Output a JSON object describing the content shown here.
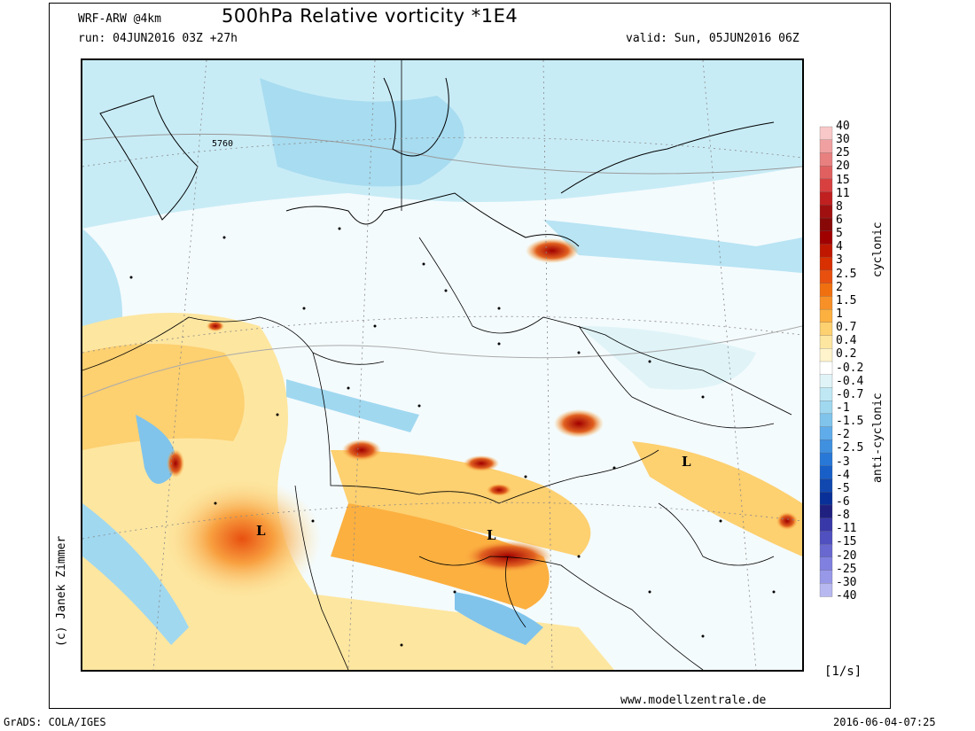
{
  "header": {
    "model": "WRF-ARW @4km",
    "title": "500hPa Relative vorticity *1E4",
    "run": "run: 04JUN2016 03Z +27h",
    "valid": "valid: Sun, 05JUN2016 06Z"
  },
  "footer": {
    "units": "[1/s]",
    "url": "www.modellzentrale.de",
    "grads": "GrADS: COLA/IGES",
    "timestamp": "2016-06-04-07:25",
    "copyright": "(c) Janek Zimmer"
  },
  "colorbar": {
    "cyclonic_label": "cyclonic",
    "anticyclonic_label": "anti-cyclonic",
    "ticks": [
      "40",
      "30",
      "25",
      "20",
      "15",
      "11",
      "8",
      "6",
      "5",
      "4",
      "3",
      "2.5",
      "2",
      "1.5",
      "1",
      "0.7",
      "0.4",
      "0.2",
      "-0.2",
      "-0.4",
      "-0.7",
      "-1",
      "-1.5",
      "-2",
      "-2.5",
      "-3",
      "-4",
      "-5",
      "-6",
      "-8",
      "-11",
      "-15",
      "-20",
      "-25",
      "-30",
      "-40"
    ],
    "colors": [
      "#f8c8c8",
      "#f0a0a0",
      "#e88080",
      "#e06060",
      "#d84040",
      "#c02020",
      "#a01010",
      "#880808",
      "#a00000",
      "#c01800",
      "#d83000",
      "#e85010",
      "#f07010",
      "#f89028",
      "#fcb040",
      "#fdd070",
      "#fde6a0",
      "#fff4cc",
      "#ffffff",
      "#e0f4f8",
      "#c0e8f4",
      "#a0d8f0",
      "#80c4ec",
      "#60acea",
      "#4090e0",
      "#2878d8",
      "#1860c8",
      "#1048b0",
      "#083098",
      "#202080",
      "#3838a8",
      "#5050c0",
      "#6868d0",
      "#8080e0",
      "#9898e8",
      "#b8b8f0"
    ]
  },
  "map": {
    "contour_label": "5760",
    "lows": [
      "L",
      "L",
      "L"
    ]
  }
}
